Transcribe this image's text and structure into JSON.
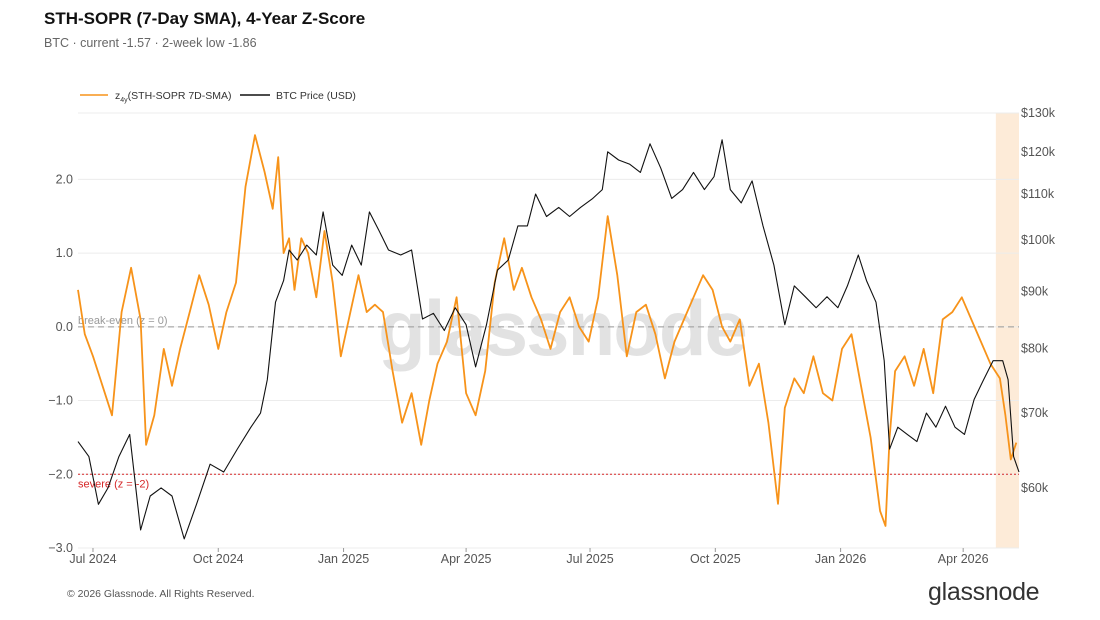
{
  "header": {
    "title": "STH-SOPR (7-Day SMA), 4-Year Z-Score",
    "subtitle": "BTC · current -1.57 · 2-week low -1.86"
  },
  "footer": {
    "copyright": "© 2026 Glassnode. All Rights Reserved.",
    "brand": "glassnode"
  },
  "watermark": "glassnode",
  "colors": {
    "zscore": "#f7931a",
    "price": "#111111",
    "breakeven": "#999999",
    "severe": "#d62728",
    "highlight": "#fdebd8"
  },
  "chart_data": {
    "type": "line",
    "legend_position": "top-left",
    "grid": "horizontal",
    "x_ticks": [
      "Jul 2024",
      "Oct 2024",
      "Jan 2025",
      "Apr 2025",
      "Jul 2025",
      "Oct 2025",
      "Jan 2026",
      "Apr 2026"
    ],
    "x_ticks_dates": [
      "2024-07-01",
      "2024-10-01",
      "2025-01-01",
      "2025-04-01",
      "2025-07-01",
      "2025-10-01",
      "2026-01-01",
      "2026-04-01"
    ],
    "x_range": [
      "2024-06-20",
      "2026-05-12"
    ],
    "y_left": {
      "ticks": [
        "2.0",
        "1.0",
        "0.0",
        "−1.0",
        "−2.0",
        "−3.0"
      ],
      "tick_values": [
        2,
        1,
        0,
        -1,
        -2,
        -3
      ],
      "range": [
        -3,
        2.9
      ]
    },
    "y_right": {
      "ticks": [
        "$130k",
        "$120k",
        "$110k",
        "$100k",
        "$90k",
        "$80k",
        "$70k",
        "$60k"
      ],
      "tick_values": [
        130,
        120,
        110,
        100,
        90,
        80,
        70,
        60
      ],
      "unit": "k USD",
      "scale": "log",
      "range": [
        53,
        130
      ]
    },
    "reference_lines": [
      {
        "label": "break-even (z = 0)",
        "value": 0,
        "style": "dashed"
      },
      {
        "label": "severe (z = -2)",
        "value": -2,
        "style": "dotted"
      }
    ],
    "highlight_range": [
      "2026-04-25",
      "2026-05-12"
    ],
    "series": [
      {
        "name": "z4y(STH-SOPR 7D-SMA)",
        "legend_main": "z",
        "legend_sub": "4y",
        "legend_rest": "(STH-SOPR 7D-SMA)",
        "axis": "left",
        "x": [
          "2024-06-20",
          "2024-06-25",
          "2024-07-01",
          "2024-07-08",
          "2024-07-15",
          "2024-07-22",
          "2024-07-29",
          "2024-08-05",
          "2024-08-09",
          "2024-08-15",
          "2024-08-22",
          "2024-08-28",
          "2024-09-03",
          "2024-09-10",
          "2024-09-17",
          "2024-09-24",
          "2024-10-01",
          "2024-10-07",
          "2024-10-14",
          "2024-10-21",
          "2024-10-28",
          "2024-11-04",
          "2024-11-10",
          "2024-11-14",
          "2024-11-18",
          "2024-11-22",
          "2024-11-26",
          "2024-12-01",
          "2024-12-06",
          "2024-12-12",
          "2024-12-18",
          "2024-12-24",
          "2024-12-30",
          "2025-01-06",
          "2025-01-12",
          "2025-01-18",
          "2025-01-24",
          "2025-01-30",
          "2025-02-06",
          "2025-02-13",
          "2025-02-20",
          "2025-02-27",
          "2025-03-05",
          "2025-03-11",
          "2025-03-18",
          "2025-03-25",
          "2025-04-01",
          "2025-04-08",
          "2025-04-15",
          "2025-04-22",
          "2025-04-29",
          "2025-05-06",
          "2025-05-12",
          "2025-05-19",
          "2025-05-26",
          "2025-06-02",
          "2025-06-09",
          "2025-06-16",
          "2025-06-23",
          "2025-06-30",
          "2025-07-07",
          "2025-07-14",
          "2025-07-21",
          "2025-07-28",
          "2025-08-04",
          "2025-08-11",
          "2025-08-18",
          "2025-08-25",
          "2025-09-01",
          "2025-09-08",
          "2025-09-15",
          "2025-09-22",
          "2025-09-29",
          "2025-10-06",
          "2025-10-12",
          "2025-10-19",
          "2025-10-26",
          "2025-11-02",
          "2025-11-09",
          "2025-11-16",
          "2025-11-21",
          "2025-11-28",
          "2025-12-05",
          "2025-12-12",
          "2025-12-19",
          "2025-12-26",
          "2026-01-02",
          "2026-01-09",
          "2026-01-16",
          "2026-01-23",
          "2026-01-30",
          "2026-02-03",
          "2026-02-06",
          "2026-02-10",
          "2026-02-17",
          "2026-02-24",
          "2026-03-03",
          "2026-03-10",
          "2026-03-17",
          "2026-03-24",
          "2026-03-31",
          "2026-04-07",
          "2026-04-14",
          "2026-04-21",
          "2026-04-28",
          "2026-05-02",
          "2026-05-06",
          "2026-05-10"
        ],
        "values": [
          0.5,
          -0.1,
          -0.4,
          -0.8,
          -1.2,
          0.2,
          0.8,
          0.1,
          -1.6,
          -1.2,
          -0.3,
          -0.8,
          -0.3,
          0.2,
          0.7,
          0.3,
          -0.3,
          0.2,
          0.6,
          1.9,
          2.6,
          2.1,
          1.6,
          2.3,
          1.0,
          1.2,
          0.5,
          1.2,
          1.0,
          0.4,
          1.3,
          0.6,
          -0.4,
          0.2,
          0.7,
          0.2,
          0.3,
          0.2,
          -0.6,
          -1.3,
          -0.9,
          -1.6,
          -1.0,
          -0.5,
          -0.2,
          0.4,
          -0.9,
          -1.2,
          -0.6,
          0.6,
          1.2,
          0.5,
          0.8,
          0.4,
          0.1,
          -0.3,
          0.2,
          0.4,
          0.0,
          -0.2,
          0.4,
          1.5,
          0.7,
          -0.4,
          0.2,
          0.3,
          -0.1,
          -0.7,
          -0.2,
          0.1,
          0.4,
          0.7,
          0.5,
          0.0,
          -0.2,
          0.1,
          -0.8,
          -0.5,
          -1.3,
          -2.4,
          -1.1,
          -0.7,
          -0.9,
          -0.4,
          -0.9,
          -1.0,
          -0.3,
          -0.1,
          -0.8,
          -1.5,
          -2.5,
          -2.7,
          -1.5,
          -0.6,
          -0.4,
          -0.8,
          -0.3,
          -0.9,
          0.1,
          0.2,
          0.4,
          0.1,
          -0.2,
          -0.5,
          -0.7,
          -1.2,
          -1.8,
          -1.57
        ]
      },
      {
        "name": "BTC Price (USD)",
        "axis": "right",
        "x": [
          "2024-06-20",
          "2024-06-28",
          "2024-07-05",
          "2024-07-12",
          "2024-07-20",
          "2024-07-28",
          "2024-08-05",
          "2024-08-12",
          "2024-08-20",
          "2024-08-28",
          "2024-09-06",
          "2024-09-15",
          "2024-09-25",
          "2024-10-05",
          "2024-10-15",
          "2024-10-25",
          "2024-11-01",
          "2024-11-06",
          "2024-11-12",
          "2024-11-18",
          "2024-11-22",
          "2024-11-28",
          "2024-12-05",
          "2024-12-12",
          "2024-12-17",
          "2024-12-24",
          "2024-12-31",
          "2025-01-07",
          "2025-01-14",
          "2025-01-20",
          "2025-01-27",
          "2025-02-03",
          "2025-02-12",
          "2025-02-20",
          "2025-02-28",
          "2025-03-08",
          "2025-03-16",
          "2025-03-24",
          "2025-04-01",
          "2025-04-08",
          "2025-04-16",
          "2025-04-24",
          "2025-05-02",
          "2025-05-09",
          "2025-05-16",
          "2025-05-22",
          "2025-05-30",
          "2025-06-08",
          "2025-06-16",
          "2025-06-24",
          "2025-07-03",
          "2025-07-10",
          "2025-07-14",
          "2025-07-22",
          "2025-07-30",
          "2025-08-07",
          "2025-08-14",
          "2025-08-22",
          "2025-08-30",
          "2025-09-07",
          "2025-09-15",
          "2025-09-23",
          "2025-09-30",
          "2025-10-06",
          "2025-10-12",
          "2025-10-20",
          "2025-10-28",
          "2025-11-05",
          "2025-11-13",
          "2025-11-21",
          "2025-11-28",
          "2025-12-06",
          "2025-12-14",
          "2025-12-22",
          "2025-12-30",
          "2026-01-06",
          "2026-01-14",
          "2026-01-20",
          "2026-01-27",
          "2026-02-02",
          "2026-02-06",
          "2026-02-12",
          "2026-02-19",
          "2026-02-26",
          "2026-03-05",
          "2026-03-12",
          "2026-03-19",
          "2026-03-26",
          "2026-04-02",
          "2026-04-09",
          "2026-04-16",
          "2026-04-23",
          "2026-04-30",
          "2026-05-04",
          "2026-05-08",
          "2026-05-12"
        ],
        "values": [
          66,
          64,
          58,
          60,
          64,
          67,
          55,
          59,
          60,
          59,
          54,
          58,
          63,
          62,
          65,
          68,
          70,
          75,
          88,
          92,
          98,
          96,
          99,
          97,
          106,
          95,
          93,
          99,
          95,
          106,
          102,
          98,
          97,
          98,
          85,
          86,
          83,
          87,
          84,
          77,
          84,
          94,
          96,
          103,
          103,
          110,
          105,
          107,
          105,
          107,
          109,
          111,
          120,
          118,
          117,
          115,
          122,
          116,
          109,
          111,
          115,
          111,
          114,
          123,
          111,
          108,
          113,
          103,
          95,
          84,
          91,
          89,
          87,
          89,
          87,
          91,
          97,
          92,
          88,
          78,
          65,
          68,
          67,
          66,
          70,
          68,
          71,
          68,
          67,
          72,
          75,
          78,
          78,
          75,
          64,
          62
        ]
      }
    ]
  }
}
